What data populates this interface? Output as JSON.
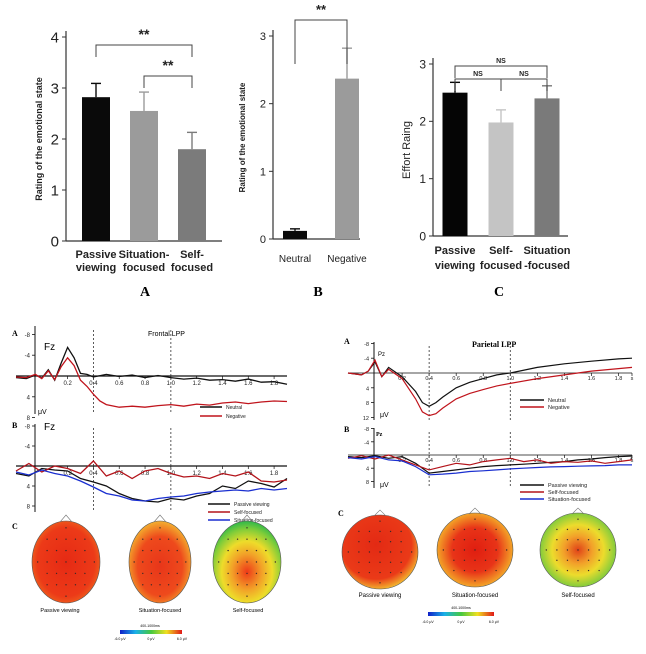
{
  "chart_data": [
    {
      "id": "A",
      "type": "bar",
      "panel_label": "A",
      "ylabel": "Rating of the emotional state",
      "ylim": [
        0,
        4
      ],
      "yticks": [
        "0",
        "1",
        "2",
        "3",
        "4"
      ],
      "categories": [
        "Passive viewing",
        "Situation-focused",
        "Self-focused"
      ],
      "category_lines": [
        [
          "Passive",
          "viewing"
        ],
        [
          "Situation-",
          "focused"
        ],
        [
          "Self-",
          "focused"
        ]
      ],
      "values": [
        2.82,
        2.55,
        1.8
      ],
      "errors": [
        0.27,
        0.37,
        0.33
      ],
      "colors": [
        "#0a0a0a",
        "#9b9b9b",
        "#7b7b7b"
      ],
      "significance": [
        {
          "between": [
            0,
            2
          ],
          "label": "**"
        },
        {
          "between": [
            1,
            2
          ],
          "label": "**"
        }
      ]
    },
    {
      "id": "B",
      "type": "bar",
      "panel_label": "B",
      "ylabel": "Rating of the emotional state",
      "ylim": [
        0,
        3
      ],
      "yticks": [
        "0",
        "1",
        "2",
        "3"
      ],
      "categories": [
        "Neutral",
        "Negative"
      ],
      "values": [
        0.12,
        2.37
      ],
      "errors": [
        0.03,
        0.45
      ],
      "colors": [
        "#0a0a0a",
        "#9b9b9b"
      ],
      "significance": [
        {
          "between": [
            0,
            1
          ],
          "label": "**"
        }
      ]
    },
    {
      "id": "C",
      "type": "bar",
      "panel_label": "C",
      "ylabel": "Effort Raing",
      "ylim": [
        0,
        3
      ],
      "yticks": [
        "0",
        "1",
        "2",
        "3"
      ],
      "categories": [
        "Passive viewing",
        "Self-focused",
        "Situation-focused"
      ],
      "category_lines": [
        [
          "Passive",
          "viewing"
        ],
        [
          "Self-",
          "focused"
        ],
        [
          "Situation",
          "-focused"
        ]
      ],
      "values": [
        2.5,
        1.98,
        2.4
      ],
      "errors": [
        0.18,
        0.22,
        0.22
      ],
      "colors": [
        "#050505",
        "#c4c4c4",
        "#7a7a7a"
      ],
      "significance": [
        {
          "between": [
            0,
            2
          ],
          "label": "NS"
        },
        {
          "between": [
            0,
            1
          ],
          "label": "NS"
        },
        {
          "between": [
            1,
            2
          ],
          "label": "NS"
        }
      ]
    },
    {
      "id": "frontal-A",
      "type": "line",
      "panel_label": "A",
      "title": "Frontal LPP",
      "channel": "Fz",
      "unit": "μV",
      "yticks": [
        "-8",
        "-4",
        "4",
        "8"
      ],
      "xticks": [
        "0.2",
        "0.4",
        "0.6",
        "0.8",
        "1.0",
        "1.2",
        "1.4",
        "1.6",
        "1.8"
      ],
      "xlim": [
        -0.2,
        1.9
      ],
      "ylim": [
        -8,
        8
      ],
      "series": [
        {
          "name": "Neutral",
          "color": "#111111",
          "x": [
            -0.2,
            -0.12,
            -0.05,
            0.0,
            0.05,
            0.1,
            0.15,
            0.2,
            0.25,
            0.3,
            0.35,
            0.4,
            0.5,
            0.6,
            0.7,
            0.8,
            0.9,
            1.0,
            1.1,
            1.2,
            1.3,
            1.4,
            1.5,
            1.6,
            1.7,
            1.8,
            1.9
          ],
          "y": [
            0.3,
            0.5,
            -0.2,
            0.4,
            -1.2,
            0.8,
            -2.5,
            -5.5,
            -3.5,
            -0.5,
            -0.3,
            0.2,
            -0.3,
            0.1,
            -0.2,
            0.3,
            -0.1,
            0.3,
            0.6,
            0.4,
            0.8,
            0.7,
            1.0,
            0.6,
            1.2,
            1.1,
            1.6
          ]
        },
        {
          "name": "Negative",
          "color": "#c0141c",
          "x": [
            -0.2,
            -0.12,
            -0.05,
            0.0,
            0.05,
            0.1,
            0.15,
            0.2,
            0.25,
            0.3,
            0.35,
            0.4,
            0.45,
            0.5,
            0.6,
            0.7,
            0.8,
            0.9,
            1.0,
            1.1,
            1.2,
            1.3,
            1.4,
            1.5,
            1.6,
            1.7,
            1.8,
            1.9
          ],
          "y": [
            0.2,
            0.3,
            -0.3,
            0.5,
            -1.0,
            0.7,
            -1.8,
            -3.5,
            -2.0,
            0.8,
            2.0,
            3.5,
            4.8,
            5.5,
            6.0,
            5.8,
            6.0,
            5.7,
            5.5,
            5.8,
            5.4,
            5.6,
            5.2,
            5.0,
            5.3,
            5.0,
            4.8,
            4.9
          ]
        }
      ]
    },
    {
      "id": "frontal-B",
      "type": "line",
      "panel_label": "B",
      "channel": "Fz",
      "yticks": [
        "-8",
        "-4",
        "4",
        "8"
      ],
      "xticks": [
        "0.2",
        "0.4",
        "0.6",
        "0.8",
        "1.0",
        "1.2",
        "1.4",
        "1.6",
        "1.8"
      ],
      "xlim": [
        -0.2,
        1.9
      ],
      "ylim": [
        -8,
        8
      ],
      "series": [
        {
          "name": "Passive viewing",
          "color": "#111111",
          "x": [
            -0.2,
            -0.1,
            0.0,
            0.1,
            0.2,
            0.3,
            0.4,
            0.5,
            0.6,
            0.7,
            0.8,
            0.9,
            1.0,
            1.1,
            1.2,
            1.3,
            1.4,
            1.5,
            1.6,
            1.7,
            1.8,
            1.9
          ],
          "y": [
            1.5,
            2.0,
            0.5,
            0.8,
            1.0,
            2.5,
            3.2,
            4.0,
            5.5,
            6.5,
            7.0,
            7.2,
            6.5,
            6.8,
            6.0,
            5.5,
            4.0,
            4.5,
            3.0,
            3.5,
            4.2,
            2.5
          ]
        },
        {
          "name": "Self-focused",
          "color": "#b3131a",
          "x": [
            -0.2,
            -0.1,
            0.0,
            0.1,
            0.2,
            0.3,
            0.4,
            0.5,
            0.6,
            0.7,
            0.8,
            0.9,
            1.0,
            1.1,
            1.2,
            1.3,
            1.4,
            1.5,
            1.6,
            1.7,
            1.8,
            1.9
          ],
          "y": [
            1.0,
            -0.5,
            1.2,
            0.0,
            0.5,
            1.5,
            -1.0,
            2.0,
            1.0,
            2.5,
            1.0,
            0.5,
            1.5,
            2.2,
            2.0,
            2.5,
            1.5,
            2.0,
            1.2,
            3.0,
            3.2,
            2.8
          ]
        },
        {
          "name": "Situation-focused",
          "color": "#1a2fd0",
          "x": [
            -0.2,
            -0.1,
            0.0,
            0.1,
            0.2,
            0.3,
            0.4,
            0.5,
            0.6,
            0.7,
            0.8,
            0.9,
            1.0,
            1.1,
            1.2,
            1.3,
            1.4,
            1.5,
            1.6,
            1.7,
            1.8,
            1.9
          ],
          "y": [
            1.2,
            1.8,
            0.8,
            1.5,
            2.0,
            3.0,
            4.2,
            5.5,
            6.0,
            6.8,
            7.0,
            6.5,
            6.2,
            6.0,
            5.5,
            5.2,
            5.0,
            4.8,
            5.0,
            4.5,
            4.8,
            4.5
          ]
        }
      ]
    },
    {
      "id": "parietal-A",
      "type": "line",
      "panel_label": "A",
      "title": "Parietal LPP",
      "channel": "Pz",
      "unit": "μV",
      "yticks": [
        "-8",
        "-4",
        "4",
        "8",
        "12"
      ],
      "xticks": [
        "0.2",
        "0.4",
        "0.6",
        "0.8",
        "1.0",
        "1.2",
        "1.4",
        "1.6",
        "1.8",
        "s"
      ],
      "xlim": [
        -0.2,
        1.9
      ],
      "ylim": [
        -8,
        12
      ],
      "series": [
        {
          "name": "Neutral",
          "color": "#111111",
          "x": [
            -0.2,
            -0.1,
            -0.05,
            0.0,
            0.05,
            0.1,
            0.2,
            0.3,
            0.35,
            0.4,
            0.45,
            0.5,
            0.6,
            0.7,
            0.8,
            0.9,
            1.0,
            1.2,
            1.4,
            1.6,
            1.8,
            1.9
          ],
          "y": [
            0,
            0.5,
            -0.5,
            -3.0,
            1.0,
            -1.5,
            1.0,
            5.0,
            8.0,
            9.0,
            8.0,
            6.5,
            4.0,
            2.5,
            1.5,
            0.5,
            0.0,
            -1.5,
            -2.5,
            -3.2,
            -3.8,
            -4.0
          ]
        },
        {
          "name": "Negative",
          "color": "#c0141c",
          "x": [
            -0.2,
            -0.1,
            -0.05,
            0.0,
            0.05,
            0.1,
            0.2,
            0.3,
            0.35,
            0.4,
            0.45,
            0.5,
            0.6,
            0.7,
            0.8,
            0.9,
            1.0,
            1.2,
            1.4,
            1.6,
            1.8,
            1.9
          ],
          "y": [
            0,
            0.5,
            -0.5,
            -3.5,
            1.0,
            -1.0,
            1.5,
            7.0,
            10.5,
            11.5,
            11.0,
            9.5,
            7.0,
            5.5,
            4.5,
            3.5,
            2.8,
            1.5,
            0.5,
            -0.5,
            -1.2,
            -1.5
          ]
        }
      ]
    },
    {
      "id": "parietal-B",
      "type": "line",
      "panel_label": "B",
      "channel": "Pz",
      "unit": "μV",
      "yticks": [
        "-8",
        "-4",
        "4",
        "8"
      ],
      "xticks": [
        "0.2",
        "0.4",
        "0.6",
        "0.8",
        "1.0",
        "1.2",
        "1.4",
        "1.6",
        "1.8",
        "s"
      ],
      "xlim": [
        -0.2,
        1.9
      ],
      "ylim": [
        -8,
        8
      ],
      "series": [
        {
          "name": "Passive viewing",
          "color": "#111111",
          "x": [
            -0.2,
            -0.1,
            0.0,
            0.1,
            0.2,
            0.3,
            0.4,
            0.5,
            0.6,
            0.7,
            0.8,
            0.9,
            1.0,
            1.1,
            1.2,
            1.3,
            1.4,
            1.5,
            1.6,
            1.7,
            1.8,
            1.9
          ],
          "y": [
            0.5,
            0.8,
            0.2,
            1.0,
            0.5,
            2.5,
            5.5,
            5.0,
            4.5,
            4.0,
            3.5,
            3.2,
            3.0,
            2.8,
            2.5,
            2.2,
            2.0,
            1.5,
            1.2,
            0.8,
            0.5,
            0.3
          ]
        },
        {
          "name": "Self-focused",
          "color": "#b3131a",
          "x": [
            -0.2,
            -0.1,
            0.0,
            0.1,
            0.2,
            0.3,
            0.4,
            0.5,
            0.6,
            0.7,
            0.8,
            0.9,
            1.0,
            1.1,
            1.2,
            1.3,
            1.4,
            1.5,
            1.6,
            1.7,
            1.8,
            1.9
          ],
          "y": [
            1.0,
            0.2,
            1.2,
            0.0,
            1.5,
            3.0,
            4.5,
            3.5,
            2.5,
            3.0,
            2.0,
            1.5,
            1.0,
            2.0,
            1.5,
            2.5,
            2.0,
            2.2,
            1.8,
            2.5,
            2.0,
            1.5
          ]
        },
        {
          "name": "Situation-focused",
          "color": "#1a2fd0",
          "x": [
            -0.2,
            -0.1,
            0.0,
            0.1,
            0.2,
            0.3,
            0.4,
            0.5,
            0.6,
            0.7,
            0.8,
            0.9,
            1.0,
            1.1,
            1.2,
            1.3,
            1.4,
            1.5,
            1.6,
            1.7,
            1.8,
            1.9
          ],
          "y": [
            0.8,
            1.2,
            0.5,
            1.5,
            1.8,
            3.5,
            6.0,
            5.8,
            5.5,
            5.0,
            4.8,
            4.5,
            4.2,
            4.0,
            3.8,
            3.6,
            3.5,
            3.4,
            3.3,
            3.2,
            3.0,
            3.0
          ]
        }
      ]
    }
  ],
  "figure_labels": {
    "bar_A": "A",
    "bar_B": "B",
    "bar_C": "C",
    "frontal": {
      "A": "A",
      "B": "B",
      "C": "C",
      "title": "Frontal LPP",
      "fz1": "Fz",
      "fz2": "Fz",
      "unit": "μV"
    },
    "parietal": {
      "A": "A",
      "B": "B",
      "C": "C",
      "title": "Parietal LPP",
      "pz1": "Pz",
      "pz2": "Pz",
      "unit": "μV",
      "b_star": "*"
    }
  },
  "topomaps": {
    "frontal": {
      "labels": [
        "Passive viewing",
        "Situation-focused",
        "Self-focused"
      ],
      "colorbar_title": "400-1000ms",
      "colorbar_ticks": [
        "-6.0 μV",
        "0 μV",
        "6.0 μV"
      ]
    },
    "parietal": {
      "labels": [
        "Passive viewing",
        "Situation-focused",
        "Self-focused"
      ],
      "colorbar_title": "400-1000ms",
      "colorbar_ticks": [
        "-6.0 μV",
        "0 μV",
        "6.0 μV"
      ]
    }
  }
}
